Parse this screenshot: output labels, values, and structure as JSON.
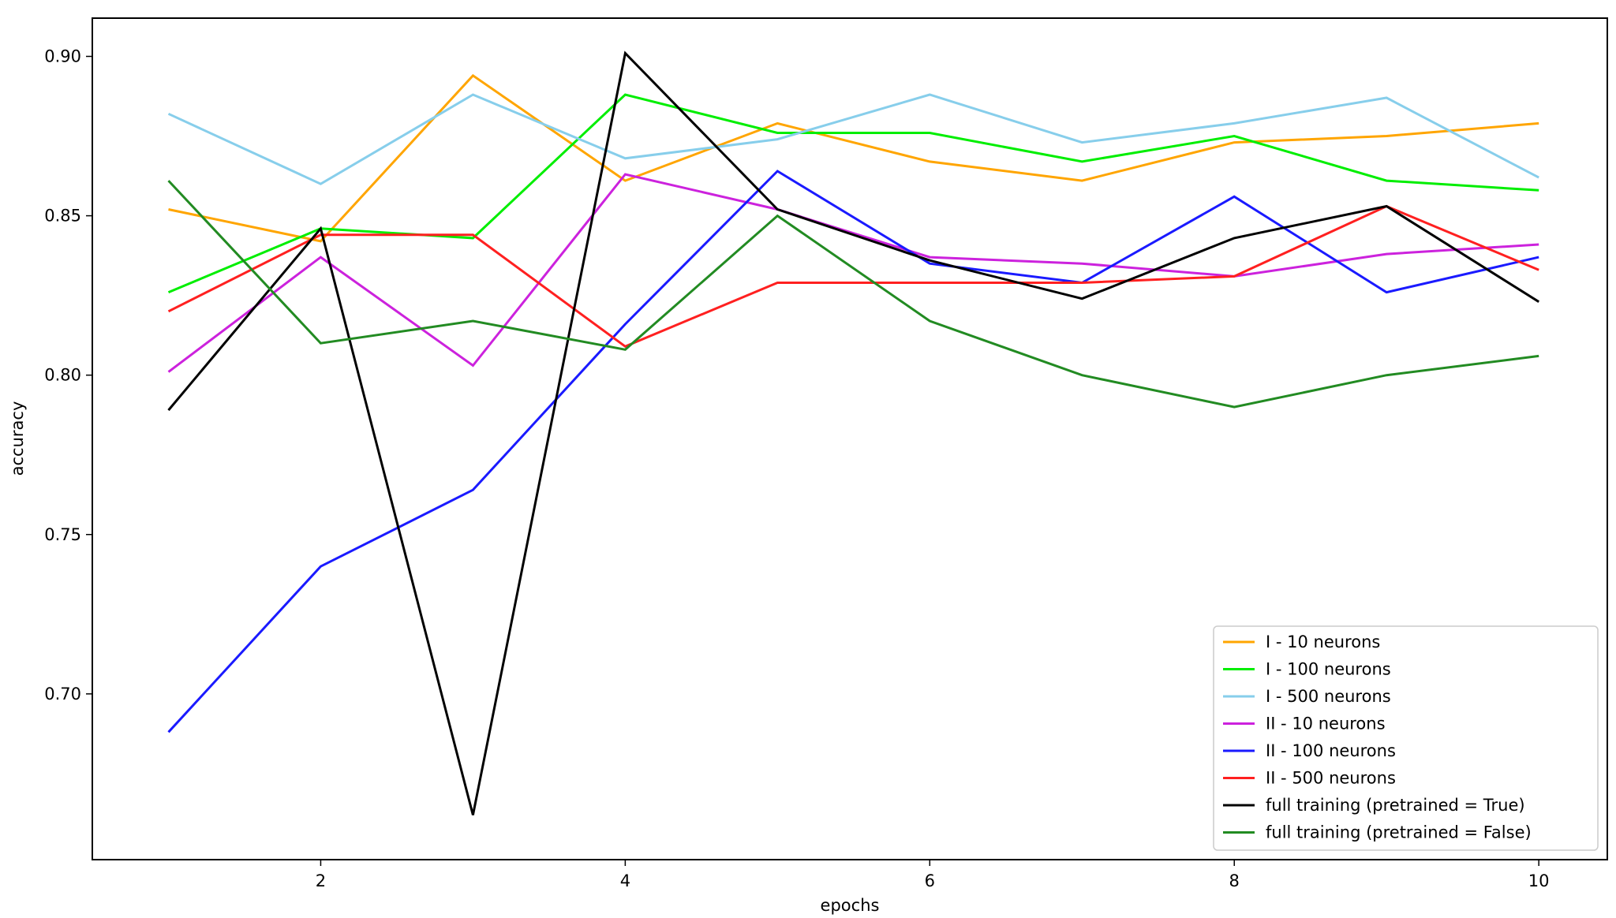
{
  "chart_data": {
    "type": "line",
    "title": "",
    "xlabel": "epochs",
    "ylabel": "accuracy",
    "x": [
      1,
      2,
      3,
      4,
      5,
      6,
      7,
      8,
      9,
      10
    ],
    "xlim": [
      0.5,
      10.45
    ],
    "ylim": [
      0.648,
      0.912
    ],
    "xticks": [
      2,
      4,
      6,
      8,
      10
    ],
    "xtick_labels": [
      "2",
      "4",
      "6",
      "8",
      "10"
    ],
    "yticks": [
      0.7,
      0.75,
      0.8,
      0.85,
      0.9
    ],
    "ytick_labels": [
      "0.70",
      "0.75",
      "0.80",
      "0.85",
      "0.90"
    ],
    "grid": false,
    "legend_position": "bottom-right",
    "series": [
      {
        "name": "I - 10 neurons",
        "color": "#ffa500",
        "values": [
          0.852,
          0.842,
          0.894,
          0.861,
          0.879,
          0.867,
          0.861,
          0.873,
          0.875,
          0.879
        ]
      },
      {
        "name": "I - 100 neurons",
        "color": "#00ee00",
        "values": [
          0.826,
          0.846,
          0.843,
          0.888,
          0.876,
          0.876,
          0.867,
          0.875,
          0.861,
          0.858
        ]
      },
      {
        "name": "I - 500 neurons",
        "color": "#87ceeb",
        "values": [
          0.882,
          0.86,
          0.888,
          0.868,
          0.874,
          0.888,
          0.873,
          0.879,
          0.887,
          0.862
        ]
      },
      {
        "name": "II - 10 neurons",
        "color": "#cc22dd",
        "values": [
          0.801,
          0.837,
          0.803,
          0.863,
          0.852,
          0.837,
          0.835,
          0.831,
          0.838,
          0.841
        ]
      },
      {
        "name": "II - 100 neurons",
        "color": "#1a1aff",
        "values": [
          0.688,
          0.74,
          0.764,
          0.816,
          0.864,
          0.835,
          0.829,
          0.856,
          0.826,
          0.837
        ]
      },
      {
        "name": "II - 500 neurons",
        "color": "#ff2020",
        "values": [
          0.82,
          0.844,
          0.844,
          0.809,
          0.829,
          0.829,
          0.829,
          0.831,
          0.853,
          0.833
        ]
      },
      {
        "name": "full training (pretrained = True)",
        "color": "#000000",
        "values": [
          0.789,
          0.846,
          0.662,
          0.901,
          0.852,
          0.836,
          0.824,
          0.843,
          0.853,
          0.823
        ]
      },
      {
        "name": "full training (pretrained = False)",
        "color": "#228b22",
        "values": [
          0.861,
          0.81,
          0.817,
          0.808,
          0.85,
          0.817,
          0.8,
          0.79,
          0.8,
          0.806
        ]
      }
    ]
  }
}
